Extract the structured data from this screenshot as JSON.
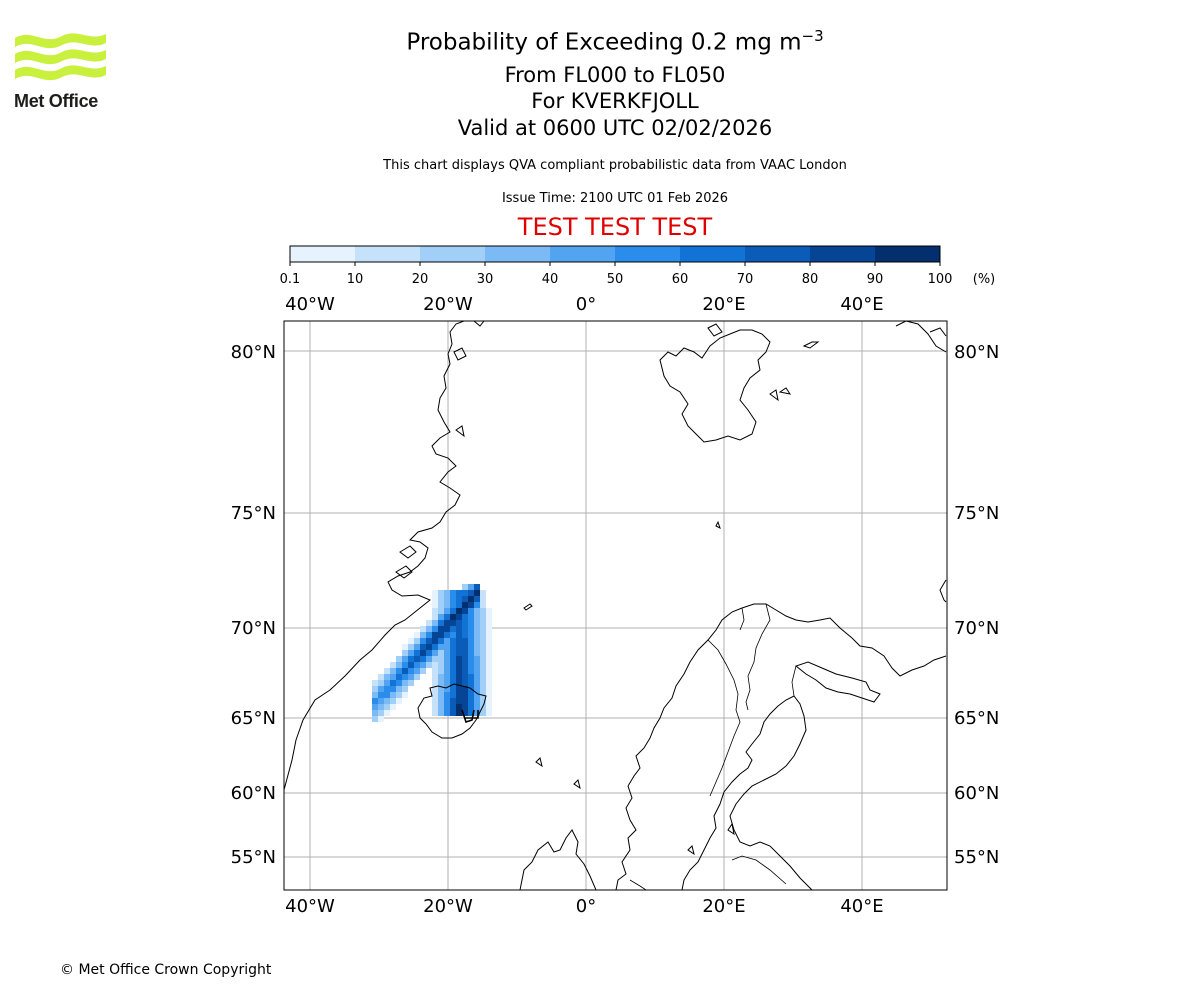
{
  "logo": {
    "text": "Met Office",
    "color": "#c8f03c"
  },
  "title": {
    "main": "Probability of Exceeding 0.2 mg m",
    "main_sup": "−3",
    "line2": "From FL000 to FL050",
    "line3": "For KVERKFJOLL",
    "line4": "Valid at 0600 UTC 02/02/2026"
  },
  "subtitle": "This chart displays QVA compliant probabilistic data from VAAC London",
  "issue_time": "Issue Time: 2100 UTC 01 Feb 2026",
  "test_banner": "TEST TEST TEST",
  "colorbar": {
    "ticks": [
      "0.1",
      "10",
      "20",
      "30",
      "40",
      "50",
      "60",
      "70",
      "80",
      "90",
      "100"
    ],
    "unit": "(%)",
    "colors": [
      "#e6f3fe",
      "#c6e2fb",
      "#a2cff8",
      "#7bbaf5",
      "#52a4f1",
      "#2a8deb",
      "#1273d6",
      "#0a5cb8",
      "#064596",
      "#032f6e"
    ]
  },
  "map": {
    "lon_labels": [
      "40°W",
      "20°W",
      "0°",
      "20°E",
      "40°E"
    ],
    "lat_labels": [
      "80°N",
      "75°N",
      "70°N",
      "65°N",
      "60°N",
      "55°N"
    ],
    "volcano": "KVERKFJOLL"
  },
  "copyright": "© Met Office Crown Copyright"
}
